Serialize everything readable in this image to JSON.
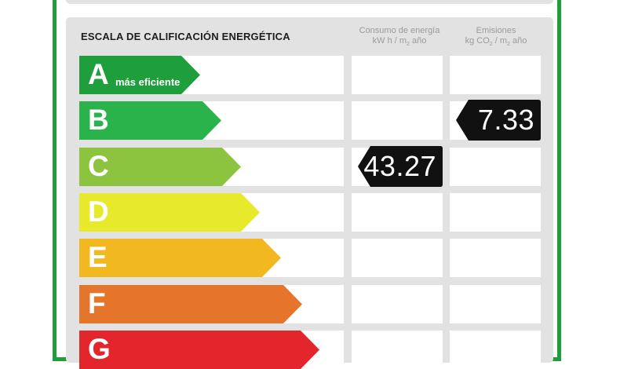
{
  "title": "ESCALA DE CALIFICACIÓN ENERGÉTICA",
  "col_consumo": {
    "line1": "Consumo de energía",
    "line2_a": "kW h / m",
    "line2_sub": "2",
    "line2_b": " año"
  },
  "col_emisiones": {
    "line1": "Emisiones",
    "line2_a": "kg CO",
    "line2_sub1": "2",
    "line2_b": " / m",
    "line2_sub2": "2",
    "line2_c": " año"
  },
  "ratings": [
    {
      "letter": "A",
      "sub": "más eficiente",
      "color": "#1f9e3c"
    },
    {
      "letter": "B",
      "sub": "",
      "color": "#29b34a"
    },
    {
      "letter": "C",
      "sub": "",
      "color": "#8cc43f"
    },
    {
      "letter": "D",
      "sub": "",
      "color": "#e7ea2b"
    },
    {
      "letter": "E",
      "sub": "",
      "color": "#f1b81f"
    },
    {
      "letter": "F",
      "sub": "",
      "color": "#e5752a"
    },
    {
      "letter": "G",
      "sub": "",
      "color": "#e3262b"
    }
  ],
  "consumo": {
    "value": "43.27",
    "rating": "C"
  },
  "emisiones": {
    "value": "7.33",
    "rating": "B"
  }
}
